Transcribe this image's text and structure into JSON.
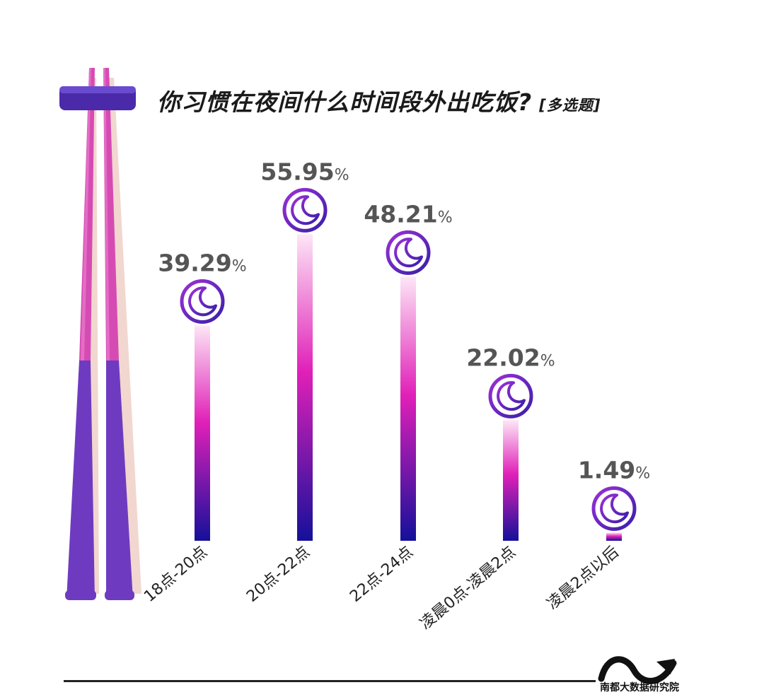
{
  "title": "你习惯在夜间什么时间段外出吃饭?",
  "subtitle": "[多选题]",
  "brand_text": "南都大数据研究院",
  "colors": {
    "bar_top": "#fde6f6",
    "bar_mid": "#e020b8",
    "bar_bottom": "#14109a",
    "moon_a": "#9b30d6",
    "moon_b": "#3a1fa8",
    "value_text": "#555555",
    "chopstick_top": "#d64bb3",
    "chopstick_bottom": "#6e3bc0",
    "rest": "#4a2aa8"
  },
  "icons": [
    "moon-icon",
    "chopsticks-illustration",
    "chopstick-rest",
    "brand-logo"
  ],
  "chart_data": {
    "type": "bar",
    "title": "你习惯在夜间什么时间段外出吃饭?",
    "subtitle": "[多选题]",
    "categories": [
      "18点-20点",
      "20点-22点",
      "22点-24点",
      "凌晨0点-凌晨2点",
      "凌晨2点以后"
    ],
    "values": [
      39.29,
      55.95,
      48.21,
      22.02,
      1.49
    ],
    "labels": [
      "39.29",
      "55.95",
      "48.21",
      "22.02",
      "1.49"
    ],
    "unit": "%",
    "xlabel": "",
    "ylabel": "",
    "ylim": [
      0,
      56
    ],
    "grid": false,
    "legend": "none"
  }
}
